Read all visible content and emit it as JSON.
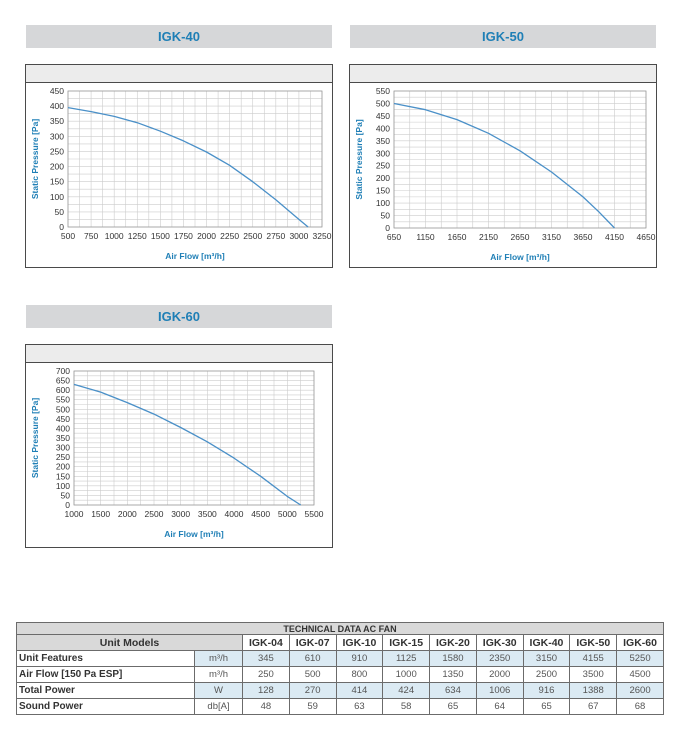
{
  "charts": [
    {
      "id": "igk40",
      "title": "IGK-40"
    },
    {
      "id": "igk50",
      "title": "IGK-50"
    },
    {
      "id": "igk60",
      "title": "IGK-60"
    }
  ],
  "colors": {
    "band": "#d6d7d9",
    "accent": "#1f7fb6",
    "curve": "#4a90c8",
    "grid": "#cccccc"
  },
  "chart_data": [
    {
      "type": "line",
      "title": "IGK-40",
      "xlabel": "Air Flow [m³/h]",
      "ylabel": "Static Pressure [Pa]",
      "xlim": [
        500,
        3250
      ],
      "ylim": [
        0,
        450
      ],
      "xticks": [
        500,
        750,
        1000,
        1250,
        1500,
        1750,
        2000,
        2250,
        2500,
        2750,
        3000,
        3250
      ],
      "yticks": [
        0,
        50,
        100,
        150,
        200,
        250,
        300,
        350,
        400,
        450
      ],
      "grid": true,
      "series": [
        {
          "x": [
            500,
            750,
            1000,
            1250,
            1500,
            1750,
            2000,
            2250,
            2500,
            2750,
            3000,
            3100
          ],
          "y": [
            395,
            382,
            366,
            345,
            317,
            285,
            248,
            204,
            150,
            90,
            25,
            0
          ]
        }
      ]
    },
    {
      "type": "line",
      "title": "IGK-50",
      "xlabel": "Air Flow [m³/h]",
      "ylabel": "Static Pressure [Pa]",
      "xlim": [
        650,
        4650
      ],
      "ylim": [
        0,
        550
      ],
      "xticks": [
        650,
        1150,
        1650,
        2150,
        2650,
        3150,
        3650,
        4150,
        4650
      ],
      "yticks": [
        0,
        50,
        100,
        150,
        200,
        250,
        300,
        350,
        400,
        450,
        500,
        550
      ],
      "grid": true,
      "series": [
        {
          "x": [
            650,
            1150,
            1650,
            2150,
            2650,
            3150,
            3650,
            3900,
            4150
          ],
          "y": [
            500,
            475,
            435,
            380,
            310,
            225,
            125,
            65,
            0
          ]
        }
      ]
    },
    {
      "type": "line",
      "title": "IGK-60",
      "xlabel": "Air Flow [m³/h]",
      "ylabel": "Static Pressure [Pa]",
      "xlim": [
        1000,
        5500
      ],
      "ylim": [
        0,
        700
      ],
      "xticks": [
        1000,
        1500,
        2000,
        2500,
        3000,
        3500,
        4000,
        4500,
        5000,
        5500
      ],
      "yticks": [
        0,
        50,
        100,
        150,
        200,
        250,
        300,
        350,
        400,
        450,
        500,
        550,
        600,
        650,
        700
      ],
      "grid": true,
      "series": [
        {
          "x": [
            1000,
            1500,
            2000,
            2500,
            3000,
            3500,
            4000,
            4500,
            5000,
            5250
          ],
          "y": [
            630,
            590,
            535,
            475,
            405,
            330,
            245,
            150,
            45,
            0
          ]
        }
      ]
    }
  ],
  "table": {
    "title": "TECHNICAL DATA AC FAN",
    "header_label": "Unit Models",
    "models": [
      "IGK-04",
      "IGK-07",
      "IGK-10",
      "IGK-15",
      "IGK-20",
      "IGK-30",
      "IGK-40",
      "IGK-50",
      "IGK-60"
    ],
    "rows": [
      {
        "label": "Unit Features",
        "unit": "m³/h",
        "shade": true,
        "values": [
          "345",
          "610",
          "910",
          "1125",
          "1580",
          "2350",
          "3150",
          "4155",
          "5250"
        ]
      },
      {
        "label": "Air Flow [150 Pa ESP]",
        "unit": "m³/h",
        "shade": false,
        "values": [
          "250",
          "500",
          "800",
          "1000",
          "1350",
          "2000",
          "2500",
          "3500",
          "4500"
        ]
      },
      {
        "label": "Total Power",
        "unit": "W",
        "shade": true,
        "values": [
          "128",
          "270",
          "414",
          "424",
          "634",
          "1006",
          "916",
          "1388",
          "2600"
        ]
      },
      {
        "label": "Sound Power",
        "unit": "db[A]",
        "shade": false,
        "values": [
          "48",
          "59",
          "63",
          "58",
          "65",
          "64",
          "65",
          "67",
          "68"
        ]
      }
    ]
  }
}
